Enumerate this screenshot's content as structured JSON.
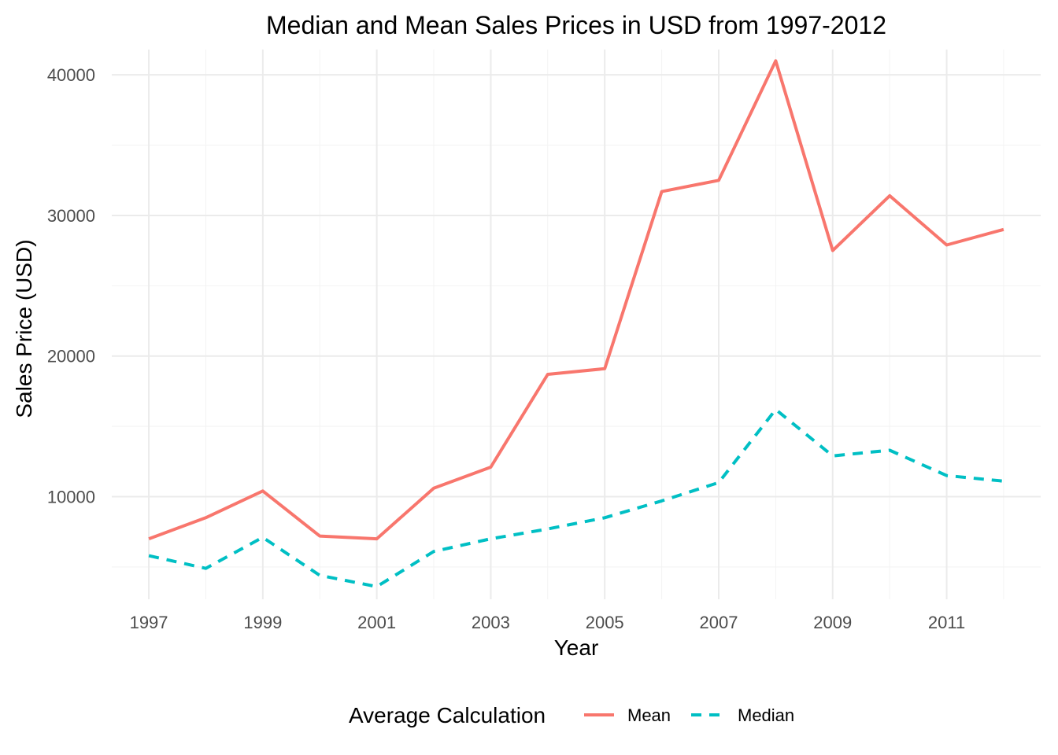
{
  "chart_data": {
    "type": "line",
    "title": "Median and Mean Sales Prices in USD from 1997-2012",
    "xlabel": "Year",
    "ylabel": "Sales Price (USD)",
    "x": [
      1997,
      1998,
      1999,
      2000,
      2001,
      2002,
      2003,
      2004,
      2005,
      2006,
      2007,
      2008,
      2009,
      2010,
      2011,
      2012
    ],
    "x_ticks": [
      "1997",
      "1999",
      "2001",
      "2003",
      "2005",
      "2007",
      "2009",
      "2011"
    ],
    "y_ticks": [
      "10000",
      "20000",
      "30000",
      "40000"
    ],
    "xlim": [
      1996.35,
      2012.65
    ],
    "ylim": [
      2700,
      41800
    ],
    "grid": true,
    "legend": {
      "title": "Average Calculation",
      "position": "bottom"
    },
    "series": [
      {
        "name": "Mean",
        "color": "#F8766D",
        "linestyle": "solid",
        "values": [
          7000,
          8500,
          10400,
          7200,
          7000,
          10600,
          12100,
          18700,
          19100,
          31700,
          32500,
          41000,
          27500,
          31400,
          27900,
          29000
        ]
      },
      {
        "name": "Median",
        "color": "#00BFC4",
        "linestyle": "dashed",
        "values": [
          5800,
          4900,
          7100,
          4400,
          3600,
          6100,
          7000,
          7700,
          8500,
          9700,
          11000,
          16200,
          12900,
          13300,
          11500,
          11100
        ]
      }
    ]
  }
}
